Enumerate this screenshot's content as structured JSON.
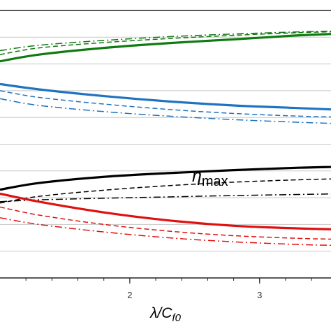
{
  "chart_data": {
    "type": "line",
    "xlabel": {
      "main": "λ/C",
      "sub": "f0"
    },
    "xticks": [
      {
        "value": 2,
        "label": "2"
      },
      {
        "value": 3,
        "label": "3"
      }
    ],
    "xlim": [
      1.0,
      3.55
    ],
    "ylim": [
      0,
      10
    ],
    "grid": true,
    "gridlines_y": [
      1.0,
      2.0,
      3.0,
      4.0,
      5.0,
      6.0,
      7.0,
      8.0,
      9.0
    ],
    "annotations": [
      {
        "text": "η",
        "sub": "max",
        "x": 2.6,
        "y": 3.5
      }
    ],
    "series": [
      {
        "color": "#0f7a0f",
        "style": "solid",
        "width": 3.2,
        "x": [
          1.0,
          1.3,
          1.8,
          2.3,
          2.8,
          3.3,
          3.55
        ],
        "y": [
          8.1,
          8.35,
          8.6,
          8.78,
          8.92,
          9.07,
          9.12
        ]
      },
      {
        "color": "#0f7a0f",
        "style": "dashed",
        "width": 1.5,
        "x": [
          1.0,
          1.3,
          1.8,
          2.3,
          2.8,
          3.3,
          3.55
        ],
        "y": [
          8.35,
          8.6,
          8.8,
          8.95,
          9.07,
          9.17,
          9.2
        ]
      },
      {
        "color": "#0f7a0f",
        "style": "dashdot",
        "width": 1.5,
        "x": [
          1.0,
          1.3,
          1.8,
          2.3,
          2.8,
          3.3,
          3.55
        ],
        "y": [
          8.5,
          8.7,
          8.88,
          9.02,
          9.12,
          9.2,
          9.23
        ]
      },
      {
        "color": "#1f73c0",
        "style": "solid",
        "width": 3.2,
        "x": [
          1.0,
          1.3,
          1.8,
          2.3,
          2.8,
          3.3,
          3.55
        ],
        "y": [
          7.25,
          7.05,
          6.8,
          6.6,
          6.45,
          6.35,
          6.3
        ]
      },
      {
        "color": "#1f73c0",
        "style": "dashed",
        "width": 1.5,
        "x": [
          1.0,
          1.3,
          1.8,
          2.3,
          2.8,
          3.3,
          3.55
        ],
        "y": [
          7.0,
          6.75,
          6.5,
          6.3,
          6.15,
          6.05,
          6.02
        ]
      },
      {
        "color": "#1f73c0",
        "style": "dashdot",
        "width": 1.5,
        "x": [
          1.0,
          1.3,
          1.8,
          2.3,
          2.8,
          3.3,
          3.55
        ],
        "y": [
          6.7,
          6.45,
          6.22,
          6.05,
          5.92,
          5.82,
          5.78
        ]
      },
      {
        "color": "#000000",
        "style": "solid",
        "width": 3.2,
        "x": [
          1.0,
          1.3,
          1.8,
          2.3,
          2.8,
          3.3,
          3.55
        ],
        "y": [
          3.3,
          3.55,
          3.78,
          3.92,
          4.03,
          4.12,
          4.15
        ]
      },
      {
        "color": "#000000",
        "style": "dashed",
        "width": 1.5,
        "x": [
          1.0,
          1.3,
          1.8,
          2.3,
          2.8,
          3.3,
          3.55
        ],
        "y": [
          2.8,
          3.05,
          3.28,
          3.45,
          3.58,
          3.67,
          3.7
        ]
      },
      {
        "color": "#000000",
        "style": "dashdot",
        "width": 1.5,
        "x": [
          1.0,
          1.3,
          1.8,
          2.3,
          2.8,
          3.3,
          3.55
        ],
        "y": [
          2.85,
          2.92,
          2.98,
          3.03,
          3.08,
          3.12,
          3.14
        ]
      },
      {
        "color": "#e01010",
        "style": "solid",
        "width": 3.2,
        "x": [
          1.0,
          1.3,
          1.8,
          2.3,
          2.8,
          3.3,
          3.55
        ],
        "y": [
          3.15,
          2.85,
          2.45,
          2.15,
          1.95,
          1.85,
          1.82
        ]
      },
      {
        "color": "#e01010",
        "style": "dashed",
        "width": 1.5,
        "x": [
          1.0,
          1.3,
          1.8,
          2.3,
          2.8,
          3.3,
          3.55
        ],
        "y": [
          2.65,
          2.35,
          2.0,
          1.75,
          1.58,
          1.48,
          1.45
        ]
      },
      {
        "color": "#e01010",
        "style": "dashdot",
        "width": 1.5,
        "x": [
          1.0,
          1.3,
          1.8,
          2.3,
          2.8,
          3.3,
          3.55
        ],
        "y": [
          2.25,
          2.0,
          1.72,
          1.5,
          1.35,
          1.25,
          1.22
        ]
      }
    ]
  }
}
